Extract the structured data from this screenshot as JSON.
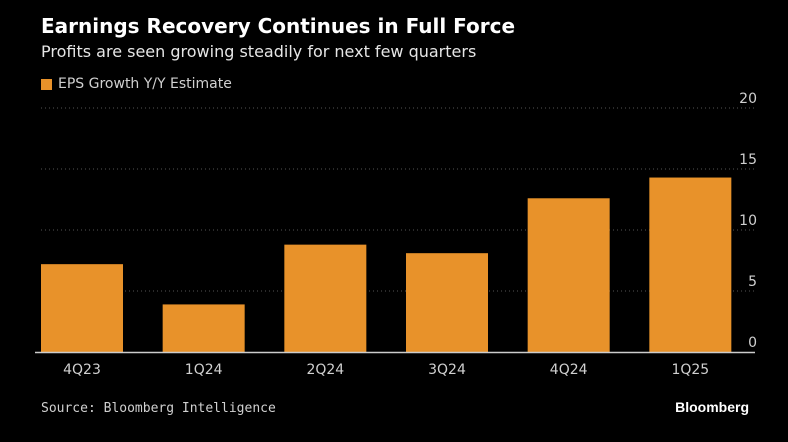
{
  "title": "Earnings Recovery Continues in Full Force",
  "subtitle": "Profits are seen growing steadily for next few quarters",
  "source": "Source: Bloomberg Intelligence",
  "brand": "Bloomberg",
  "colors": {
    "bar": "#e8922a",
    "grid": "#555555",
    "axis": "#cccccc",
    "background": "#000000"
  },
  "chart_data": {
    "type": "bar",
    "categories": [
      "4Q23",
      "1Q24",
      "2Q24",
      "3Q24",
      "4Q24",
      "1Q25"
    ],
    "series": [
      {
        "name": "EPS Growth Y/Y Estimate",
        "values": [
          7.2,
          3.9,
          8.8,
          8.1,
          12.6,
          14.3
        ]
      }
    ],
    "ylim": [
      0,
      20
    ],
    "yticks": [
      0,
      5,
      10,
      15,
      20
    ],
    "grid": true,
    "legend": "top-left",
    "y_axis_side": "right"
  }
}
